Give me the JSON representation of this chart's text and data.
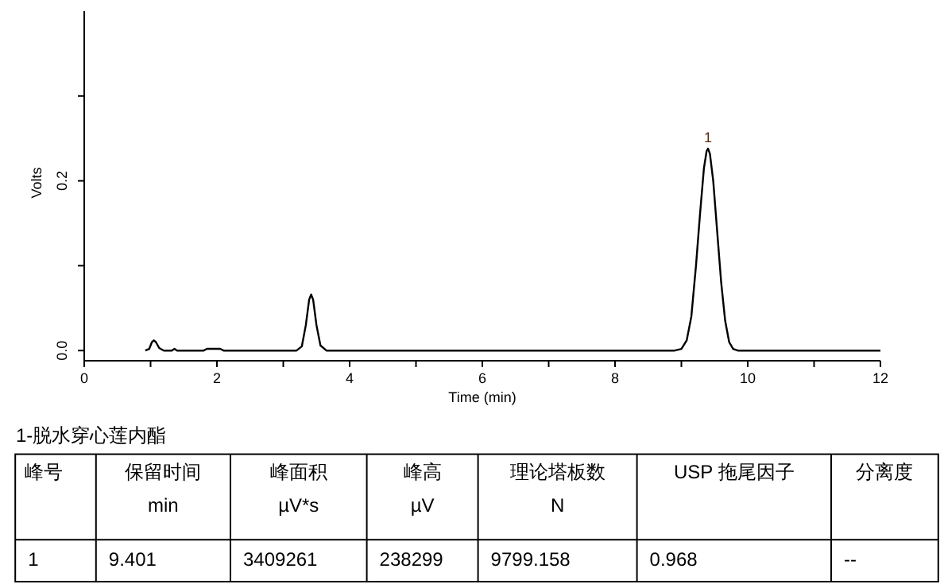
{
  "chart_data": {
    "type": "line",
    "xlabel": "Time (min)",
    "ylabel": "Volts",
    "xlim": [
      0,
      12
    ],
    "ylim": [
      -0.012,
      0.4
    ],
    "xticks": [
      0,
      {
        "value": 1,
        "label": null
      },
      2,
      {
        "value": 3,
        "label": null
      },
      4,
      {
        "value": 5,
        "label": null
      },
      6,
      {
        "value": 7,
        "label": null
      },
      8,
      {
        "value": 9,
        "label": null
      },
      10,
      {
        "value": 11,
        "label": null
      },
      12
    ],
    "yticks": [
      {
        "value": 0,
        "label": "0.0"
      },
      {
        "value": 0.1,
        "label": null
      },
      {
        "value": 0.2,
        "label": "0.2"
      },
      {
        "value": 0.3,
        "label": null
      }
    ],
    "series": [
      {
        "color": "#000000",
        "x": [
          0.92,
          0.98,
          1.02,
          1.05,
          1.08,
          1.13,
          1.2,
          1.32,
          1.36,
          1.4,
          1.8,
          1.85,
          2.05,
          2.1,
          3.2,
          3.28,
          3.34,
          3.39,
          3.42,
          3.45,
          3.5,
          3.56,
          3.65,
          8.9,
          9.0,
          9.08,
          9.15,
          9.22,
          9.28,
          9.34,
          9.38,
          9.401,
          9.43,
          9.48,
          9.54,
          9.6,
          9.66,
          9.72,
          9.78,
          9.85,
          12
        ],
        "values": [
          0,
          0.002,
          0.01,
          0.012,
          0.01,
          0.003,
          0,
          0,
          0.002,
          0,
          0,
          0.002,
          0.002,
          0,
          0,
          0.005,
          0.03,
          0.06,
          0.066,
          0.06,
          0.03,
          0.006,
          0,
          0,
          0.002,
          0.012,
          0.04,
          0.1,
          0.16,
          0.215,
          0.235,
          0.238,
          0.232,
          0.2,
          0.14,
          0.08,
          0.035,
          0.01,
          0.002,
          0,
          0
        ]
      }
    ],
    "annotations": [
      {
        "text": "1",
        "x": 9.401,
        "y": 0.238
      },
      "1-脱水穿心莲内酯",
      "峰号",
      "保留时间",
      "峰面积",
      "峰高",
      "理论塔板数",
      "USP 拖尾因子",
      "分离度",
      "min",
      "µV*s",
      "µV",
      "N",
      "1",
      "9.401",
      "3409261",
      "238299",
      "9799.158",
      "0.968",
      "--"
    ]
  }
}
